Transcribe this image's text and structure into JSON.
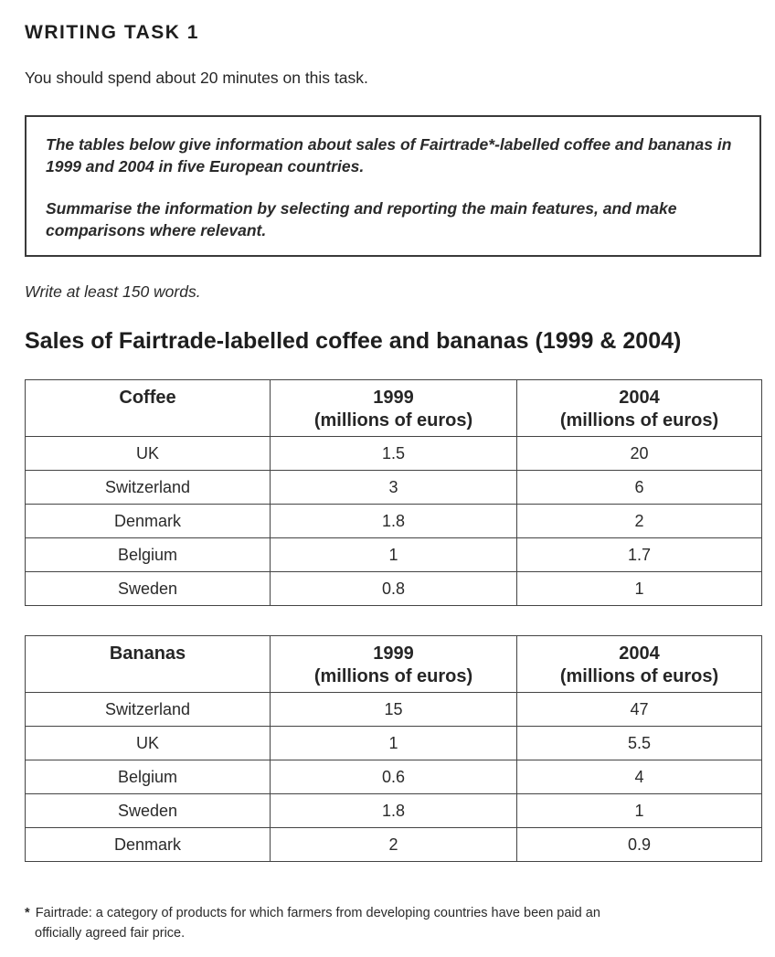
{
  "heading": "WRITING TASK 1",
  "instruction": "You should spend about 20 minutes on this task.",
  "task_box": {
    "paragraph1": "The tables below give information about sales of Fairtrade*-labelled coffee and bananas in 1999 and 2004 in five European countries.",
    "paragraph2": "Summarise the information by selecting and reporting the main features, and make comparisons where relevant."
  },
  "word_count": "Write at least 150 words.",
  "chart_title": "Sales of Fairtrade-labelled coffee and bananas (1999 & 2004)",
  "tables": [
    {
      "headers": [
        "Coffee",
        "1999",
        "(millions of euros)",
        "2004",
        "(millions of euros)"
      ],
      "rows": [
        [
          "UK",
          "1.5",
          "20"
        ],
        [
          "Switzerland",
          "3",
          "6"
        ],
        [
          "Denmark",
          "1.8",
          "2"
        ],
        [
          "Belgium",
          "1",
          "1.7"
        ],
        [
          "Sweden",
          "0.8",
          "1"
        ]
      ]
    },
    {
      "headers": [
        "Bananas",
        "1999",
        "(millions of euros)",
        "2004",
        "(millions of euros)"
      ],
      "rows": [
        [
          "Switzerland",
          "15",
          "47"
        ],
        [
          "UK",
          "1",
          "5.5"
        ],
        [
          "Belgium",
          "0.6",
          "4"
        ],
        [
          "Sweden",
          "1.8",
          "1"
        ],
        [
          "Denmark",
          "2",
          "0.9"
        ]
      ]
    }
  ],
  "footnote": {
    "star": "*",
    "line1": "Fairtrade: a category of products for which farmers from developing countries have been paid an",
    "line2": "officially agreed fair price."
  }
}
